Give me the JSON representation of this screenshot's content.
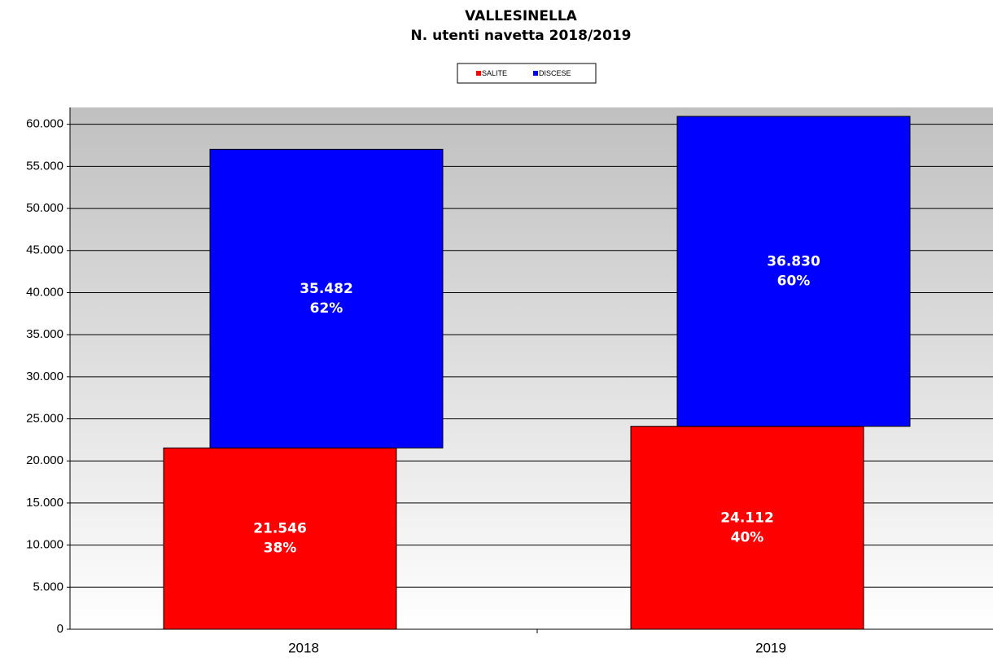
{
  "chart_data": {
    "type": "stacked_bar",
    "title": "VALLESINELLA",
    "subtitle": "N. utenti navetta 2018/2019",
    "categories": [
      "2018",
      "2019"
    ],
    "series": [
      {
        "name": "SALITE",
        "color": "#ff0000",
        "values": [
          21546,
          24112
        ],
        "value_labels": [
          "21.546",
          "24.112"
        ],
        "percent_labels": [
          "38%",
          "40%"
        ]
      },
      {
        "name": "DISCESE",
        "color": "#0000ff",
        "values": [
          35482,
          36830
        ],
        "value_labels": [
          "35.482",
          "36.830"
        ],
        "percent_labels": [
          "62%",
          "60%"
        ]
      }
    ],
    "ylim": [
      0,
      62000
    ],
    "yticks": [
      0,
      {
        "value": 5000,
        "label": "5.000"
      },
      {
        "value": 10000,
        "label": "10.000"
      },
      {
        "value": 15000,
        "label": "15.000"
      },
      {
        "value": 20000,
        "label": "20.000"
      },
      {
        "value": 25000,
        "label": "25.000"
      },
      {
        "value": 30000,
        "label": "30.000"
      },
      {
        "value": 35000,
        "label": "35.000"
      },
      {
        "value": 40000,
        "label": "40.000"
      },
      {
        "value": 45000,
        "label": "45.000"
      },
      {
        "value": 50000,
        "label": "50.000"
      },
      {
        "value": 55000,
        "label": "55.000"
      },
      {
        "value": 60000,
        "label": "60.000"
      }
    ],
    "grid": true,
    "legend": "top"
  }
}
